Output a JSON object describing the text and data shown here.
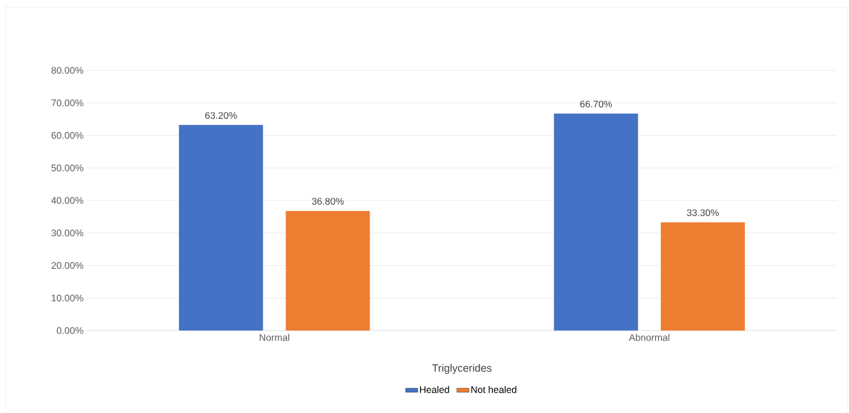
{
  "chart_data": {
    "type": "bar",
    "xlabel": "Triglycerides",
    "categories": [
      "Normal",
      "Abnormal"
    ],
    "series": [
      {
        "name": "Healed",
        "color": "#4472c4",
        "values": [
          63.2,
          66.7
        ],
        "value_labels": [
          "63.20%",
          "66.70%"
        ]
      },
      {
        "name": "Not healed",
        "color": "#ed7d31",
        "values": [
          36.8,
          33.3
        ],
        "value_labels": [
          "36.80%",
          "33.30%"
        ]
      }
    ],
    "ylim": [
      0,
      80
    ],
    "yticks": [
      {
        "value": 0,
        "label": "0.00%"
      },
      {
        "value": 10,
        "label": "10.00%"
      },
      {
        "value": 20,
        "label": "20.00%"
      },
      {
        "value": 30,
        "label": "30.00%"
      },
      {
        "value": 40,
        "label": "40.00%"
      },
      {
        "value": 50,
        "label": "50.00%"
      },
      {
        "value": 60,
        "label": "60.00%"
      },
      {
        "value": 70,
        "label": "70.00%"
      },
      {
        "value": 80,
        "label": "80.00%"
      }
    ],
    "grid": "y",
    "legend": "bottom"
  }
}
